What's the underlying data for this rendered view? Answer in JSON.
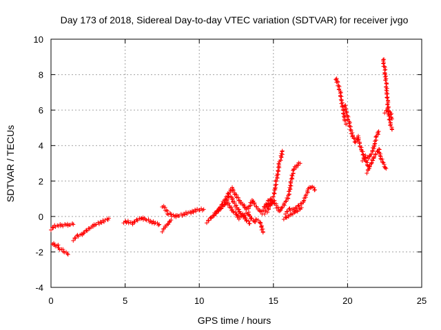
{
  "chart_data": {
    "type": "scatter",
    "title": "Day 173 of 2018, Sidereal Day-to-day VTEC variation (SDTVAR) for receiver jvgo",
    "xlabel": "GPS time / hours",
    "ylabel": "SDTVAR / TECUs",
    "xlim": [
      0,
      25
    ],
    "ylim": [
      -4,
      10
    ],
    "xticks": [
      0,
      5,
      10,
      15,
      20,
      25
    ],
    "yticks": [
      -4,
      -2,
      0,
      2,
      4,
      6,
      8,
      10
    ],
    "grid": true,
    "marker": "+",
    "color": "#ff0000",
    "series": [
      {
        "name": "SDTVAR",
        "segments": [
          [
            [
              0.0,
              -0.7
            ],
            [
              0.25,
              -0.55
            ],
            [
              0.5,
              -0.5
            ],
            [
              0.75,
              -0.5
            ],
            [
              1.0,
              -0.48
            ],
            [
              1.25,
              -0.45
            ],
            [
              1.5,
              -0.45
            ]
          ],
          [
            [
              0.1,
              -1.5
            ],
            [
              0.25,
              -1.65
            ],
            [
              0.4,
              -1.6
            ],
            [
              0.55,
              -1.8
            ],
            [
              0.7,
              -1.85
            ],
            [
              0.85,
              -1.95
            ],
            [
              1.0,
              -2.05
            ],
            [
              1.15,
              -2.15
            ]
          ],
          [
            [
              1.5,
              -1.3
            ],
            [
              1.8,
              -1.1
            ],
            [
              2.1,
              -1.0
            ],
            [
              2.4,
              -0.8
            ],
            [
              2.7,
              -0.6
            ],
            [
              3.0,
              -0.45
            ],
            [
              3.3,
              -0.35
            ],
            [
              3.6,
              -0.25
            ],
            [
              3.9,
              -0.1
            ]
          ],
          [
            [
              4.9,
              -0.3
            ],
            [
              5.2,
              -0.3
            ],
            [
              5.5,
              -0.4
            ],
            [
              5.8,
              -0.2
            ],
            [
              6.1,
              -0.1
            ],
            [
              6.4,
              -0.15
            ],
            [
              6.7,
              -0.3
            ],
            [
              7.0,
              -0.35
            ],
            [
              7.3,
              -0.45
            ]
          ],
          [
            [
              7.5,
              0.6
            ],
            [
              7.7,
              0.45
            ],
            [
              7.9,
              0.15
            ],
            [
              8.1,
              0.1
            ],
            [
              8.3,
              0.0
            ],
            [
              8.6,
              0.05
            ],
            [
              8.9,
              0.1
            ],
            [
              9.2,
              0.2
            ],
            [
              9.5,
              0.25
            ],
            [
              9.8,
              0.35
            ],
            [
              10.1,
              0.4
            ],
            [
              10.3,
              0.4
            ]
          ],
          [
            [
              7.5,
              -0.8
            ],
            [
              7.7,
              -0.6
            ],
            [
              7.9,
              -0.4
            ],
            [
              8.1,
              -0.2
            ]
          ],
          [
            [
              10.5,
              -0.3
            ],
            [
              10.8,
              -0.1
            ],
            [
              11.1,
              0.2
            ],
            [
              11.4,
              0.5
            ],
            [
              11.7,
              0.9
            ],
            [
              12.0,
              1.3
            ],
            [
              12.2,
              1.6
            ],
            [
              12.4,
              1.3
            ],
            [
              12.6,
              1.0
            ],
            [
              12.8,
              0.8
            ],
            [
              13.0,
              0.6
            ],
            [
              13.2,
              0.4
            ],
            [
              13.4,
              0.6
            ],
            [
              13.6,
              0.9
            ],
            [
              13.8,
              0.6
            ],
            [
              14.0,
              0.4
            ],
            [
              14.2,
              0.2
            ],
            [
              14.4,
              0.5
            ],
            [
              14.6,
              0.8
            ],
            [
              14.8,
              1.0
            ]
          ],
          [
            [
              11.0,
              0.1
            ],
            [
              11.3,
              0.3
            ],
            [
              11.6,
              0.6
            ],
            [
              11.9,
              0.8
            ],
            [
              12.1,
              0.5
            ],
            [
              12.3,
              0.3
            ],
            [
              12.5,
              0.1
            ],
            [
              12.7,
              -0.1
            ],
            [
              12.9,
              0.0
            ],
            [
              13.1,
              0.1
            ],
            [
              13.3,
              0.2
            ],
            [
              13.5,
              -0.1
            ],
            [
              13.7,
              -0.3
            ],
            [
              13.9,
              -0.2
            ],
            [
              14.1,
              -0.3
            ],
            [
              14.3,
              -0.9
            ]
          ],
          [
            [
              11.8,
              0.8
            ],
            [
              12.0,
              1.2
            ],
            [
              12.2,
              1.0
            ],
            [
              12.4,
              0.7
            ],
            [
              12.6,
              0.4
            ],
            [
              12.8,
              0.2
            ],
            [
              13.0,
              0.0
            ],
            [
              13.2,
              -0.2
            ],
            [
              13.4,
              -0.4
            ]
          ],
          [
            [
              14.4,
              0.2
            ],
            [
              14.6,
              0.5
            ],
            [
              14.8,
              0.8
            ],
            [
              15.0,
              1.1
            ],
            [
              15.1,
              1.5
            ],
            [
              15.2,
              2.0
            ],
            [
              15.3,
              2.5
            ],
            [
              15.4,
              3.0
            ],
            [
              15.5,
              3.3
            ],
            [
              15.6,
              3.7
            ]
          ],
          [
            [
              14.6,
              0.3
            ],
            [
              14.8,
              0.6
            ],
            [
              15.0,
              0.9
            ],
            [
              15.2,
              0.6
            ],
            [
              15.4,
              0.3
            ],
            [
              15.6,
              0.5
            ],
            [
              15.8,
              0.8
            ],
            [
              16.0,
              1.1
            ],
            [
              16.1,
              1.5
            ],
            [
              16.2,
              2.0
            ],
            [
              16.3,
              2.4
            ],
            [
              16.4,
              2.7
            ],
            [
              16.6,
              2.9
            ],
            [
              16.8,
              3.0
            ]
          ],
          [
            [
              15.8,
              0.2
            ],
            [
              16.1,
              0.4
            ],
            [
              16.4,
              0.4
            ],
            [
              16.7,
              0.6
            ],
            [
              17.0,
              0.8
            ],
            [
              17.2,
              1.2
            ],
            [
              17.4,
              1.6
            ],
            [
              17.6,
              1.7
            ],
            [
              17.8,
              1.5
            ]
          ],
          [
            [
              15.7,
              -0.1
            ],
            [
              16.0,
              0.0
            ],
            [
              16.3,
              0.2
            ],
            [
              16.6,
              0.3
            ],
            [
              16.9,
              0.5
            ]
          ],
          [
            [
              19.2,
              7.8
            ],
            [
              19.35,
              7.5
            ],
            [
              19.5,
              7.0
            ],
            [
              19.6,
              6.5
            ],
            [
              19.7,
              6.0
            ],
            [
              19.8,
              5.5
            ],
            [
              19.9,
              5.2
            ]
          ],
          [
            [
              19.8,
              6.3
            ],
            [
              19.95,
              5.8
            ],
            [
              20.1,
              5.3
            ],
            [
              20.25,
              4.8
            ],
            [
              20.4,
              4.4
            ],
            [
              20.55,
              4.2
            ],
            [
              20.7,
              4.5
            ],
            [
              20.85,
              4.0
            ],
            [
              21.0,
              3.6
            ],
            [
              21.15,
              3.3
            ],
            [
              21.3,
              3.0
            ],
            [
              21.45,
              2.7
            ]
          ],
          [
            [
              21.0,
              3.2
            ],
            [
              21.2,
              3.4
            ],
            [
              21.4,
              3.3
            ],
            [
              21.6,
              3.5
            ],
            [
              21.8,
              4.0
            ],
            [
              21.95,
              4.5
            ],
            [
              22.1,
              4.8
            ]
          ],
          [
            [
              21.3,
              2.5
            ],
            [
              21.5,
              2.8
            ],
            [
              21.7,
              3.2
            ],
            [
              21.9,
              3.5
            ],
            [
              22.1,
              3.8
            ],
            [
              22.25,
              3.3
            ],
            [
              22.4,
              3.0
            ],
            [
              22.55,
              2.8
            ],
            [
              22.6,
              2.7
            ]
          ],
          [
            [
              22.4,
              8.9
            ],
            [
              22.45,
              8.6
            ],
            [
              22.5,
              8.3
            ],
            [
              22.55,
              8.0
            ],
            [
              22.6,
              7.5
            ],
            [
              22.65,
              7.0
            ],
            [
              22.7,
              6.5
            ],
            [
              22.75,
              6.0
            ],
            [
              22.8,
              5.6
            ],
            [
              22.9,
              5.2
            ],
            [
              23.0,
              4.9
            ]
          ],
          [
            [
              22.5,
              5.9
            ],
            [
              22.7,
              6.0
            ],
            [
              22.9,
              5.8
            ],
            [
              23.0,
              5.5
            ]
          ]
        ]
      }
    ]
  }
}
